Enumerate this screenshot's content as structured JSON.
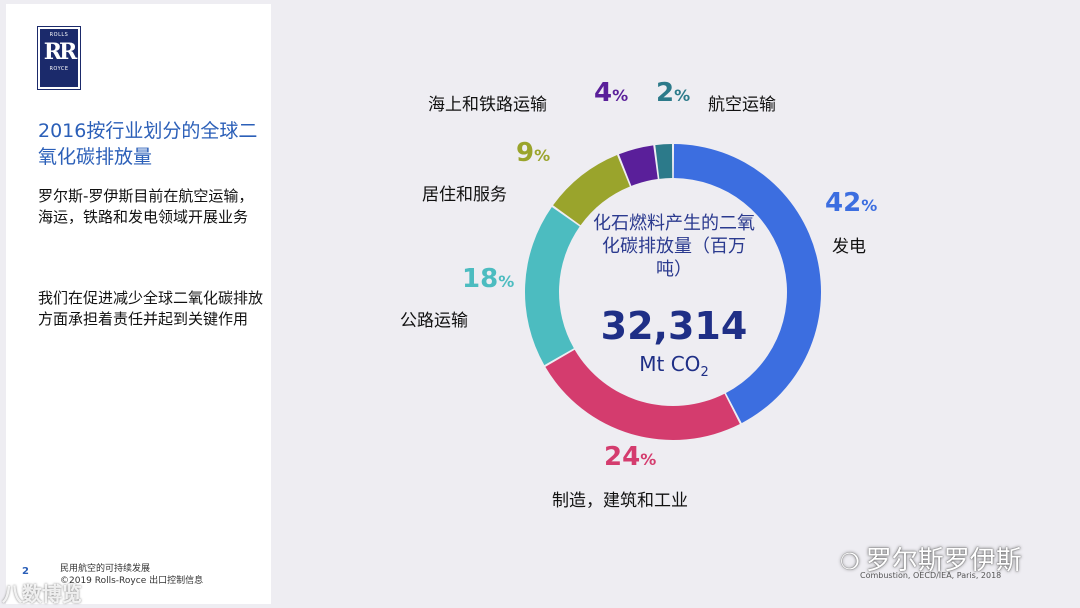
{
  "logo": {
    "top": "ROLLS",
    "mark": "RR",
    "bottom": "ROYCE"
  },
  "title": "2016按行业划分的全球二氧化碳排放量",
  "paragraph1": "罗尔斯-罗伊斯目前在航空运输，海运，铁路和发电领域开展业务",
  "paragraph2": "我们在促进减少全球二氧化碳排放方面承担着责任并起到关键作用",
  "footer": {
    "page_number": "2",
    "line1": "民用航空的可持续发展",
    "line2": "©2019 Rolls-Royce 出口控制信息"
  },
  "watermark_left": "八数博览",
  "watermark_right": "罗尔斯罗伊斯",
  "source_note": "Combustion, OECD/IEA, Paris, 2018",
  "center": {
    "text": "化石燃料产生的二氧化碳排放量（百万吨）",
    "total": "32,314",
    "unit": "Mt CO",
    "unit_sub": "2"
  },
  "chart_data": {
    "type": "pie",
    "donut": true,
    "title": "2016按行业划分的全球二氧化碳排放量",
    "total": 32314,
    "unit": "Mt CO2",
    "slices": [
      {
        "label": "发电",
        "value": 42,
        "pct_text": "42",
        "color": "#3c6ee0"
      },
      {
        "label": "制造，建筑和工业",
        "value": 24,
        "pct_text": "24",
        "color": "#d43c6e"
      },
      {
        "label": "公路运输",
        "value": 18,
        "pct_text": "18",
        "color": "#4cbcc0"
      },
      {
        "label": "居住和服务",
        "value": 9,
        "pct_text": "9",
        "color": "#9aa42c"
      },
      {
        "label": "海上和铁路运输",
        "value": 4,
        "pct_text": "4",
        "color": "#5a1f9a"
      },
      {
        "label": "航空运输",
        "value": 2,
        "pct_text": "2",
        "color": "#2c7a8a"
      }
    ],
    "pct_suffix": "%"
  }
}
